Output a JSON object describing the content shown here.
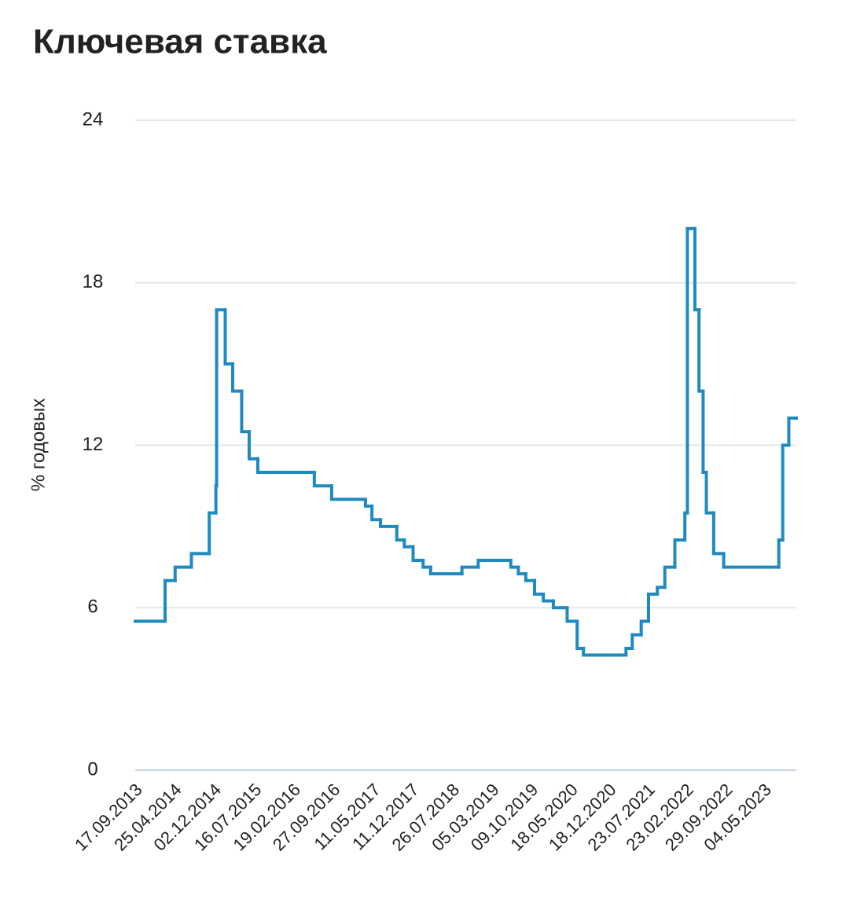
{
  "chart_data": {
    "type": "line",
    "step": true,
    "title": "Ключевая ставка",
    "y_label": "% годовых",
    "color": "#1f8ac0",
    "grid": true,
    "ylim": [
      0,
      24
    ],
    "yticks": [
      0,
      6,
      12,
      18,
      24
    ],
    "xlim": [
      "17.09.2013",
      "30.10.2023"
    ],
    "xticks": [
      "17.09.2013",
      "25.04.2014",
      "02.12.2014",
      "16.07.2015",
      "19.02.2016",
      "27.09.2016",
      "11.05.2017",
      "11.12.2017",
      "26.07.2018",
      "05.03.2019",
      "09.10.2019",
      "18.05.2020",
      "18.12.2020",
      "23.07.2021",
      "23.02.2022",
      "29.09.2022",
      "04.05.2023"
    ],
    "x": [
      "17.09.2013",
      "03.03.2014",
      "28.04.2014",
      "28.07.2014",
      "05.11.2014",
      "12.12.2014",
      "16.12.2014",
      "02.02.2015",
      "16.03.2015",
      "05.05.2015",
      "16.06.2015",
      "03.08.2015",
      "14.06.2016",
      "19.09.2016",
      "27.03.2017",
      "02.05.2017",
      "19.06.2017",
      "18.09.2017",
      "30.10.2017",
      "18.12.2017",
      "12.02.2018",
      "26.03.2018",
      "17.09.2018",
      "17.12.2018",
      "17.06.2019",
      "29.07.2019",
      "09.09.2019",
      "28.10.2019",
      "16.12.2019",
      "10.02.2020",
      "27.04.2020",
      "22.06.2020",
      "27.07.2020",
      "22.03.2021",
      "26.04.2021",
      "15.06.2021",
      "26.07.2021",
      "13.09.2021",
      "25.10.2021",
      "20.12.2021",
      "14.02.2022",
      "28.02.2022",
      "11.04.2022",
      "04.05.2022",
      "27.05.2022",
      "14.06.2022",
      "25.07.2022",
      "19.09.2022",
      "24.07.2023",
      "15.08.2023",
      "18.09.2023"
    ],
    "values": [
      5.5,
      7,
      7.5,
      8,
      9.5,
      10.5,
      17,
      15,
      14,
      12.5,
      11.5,
      11,
      10.5,
      10,
      9.75,
      9.25,
      9,
      8.5,
      8.25,
      7.75,
      7.5,
      7.25,
      7.5,
      7.75,
      7.5,
      7.25,
      7,
      6.5,
      6.25,
      6,
      5.5,
      4.5,
      4.25,
      4.5,
      5,
      5.5,
      6.5,
      6.75,
      7.5,
      8.5,
      9.5,
      20,
      17,
      14,
      11,
      9.5,
      8,
      7.5,
      8.5,
      12,
      13
    ]
  }
}
